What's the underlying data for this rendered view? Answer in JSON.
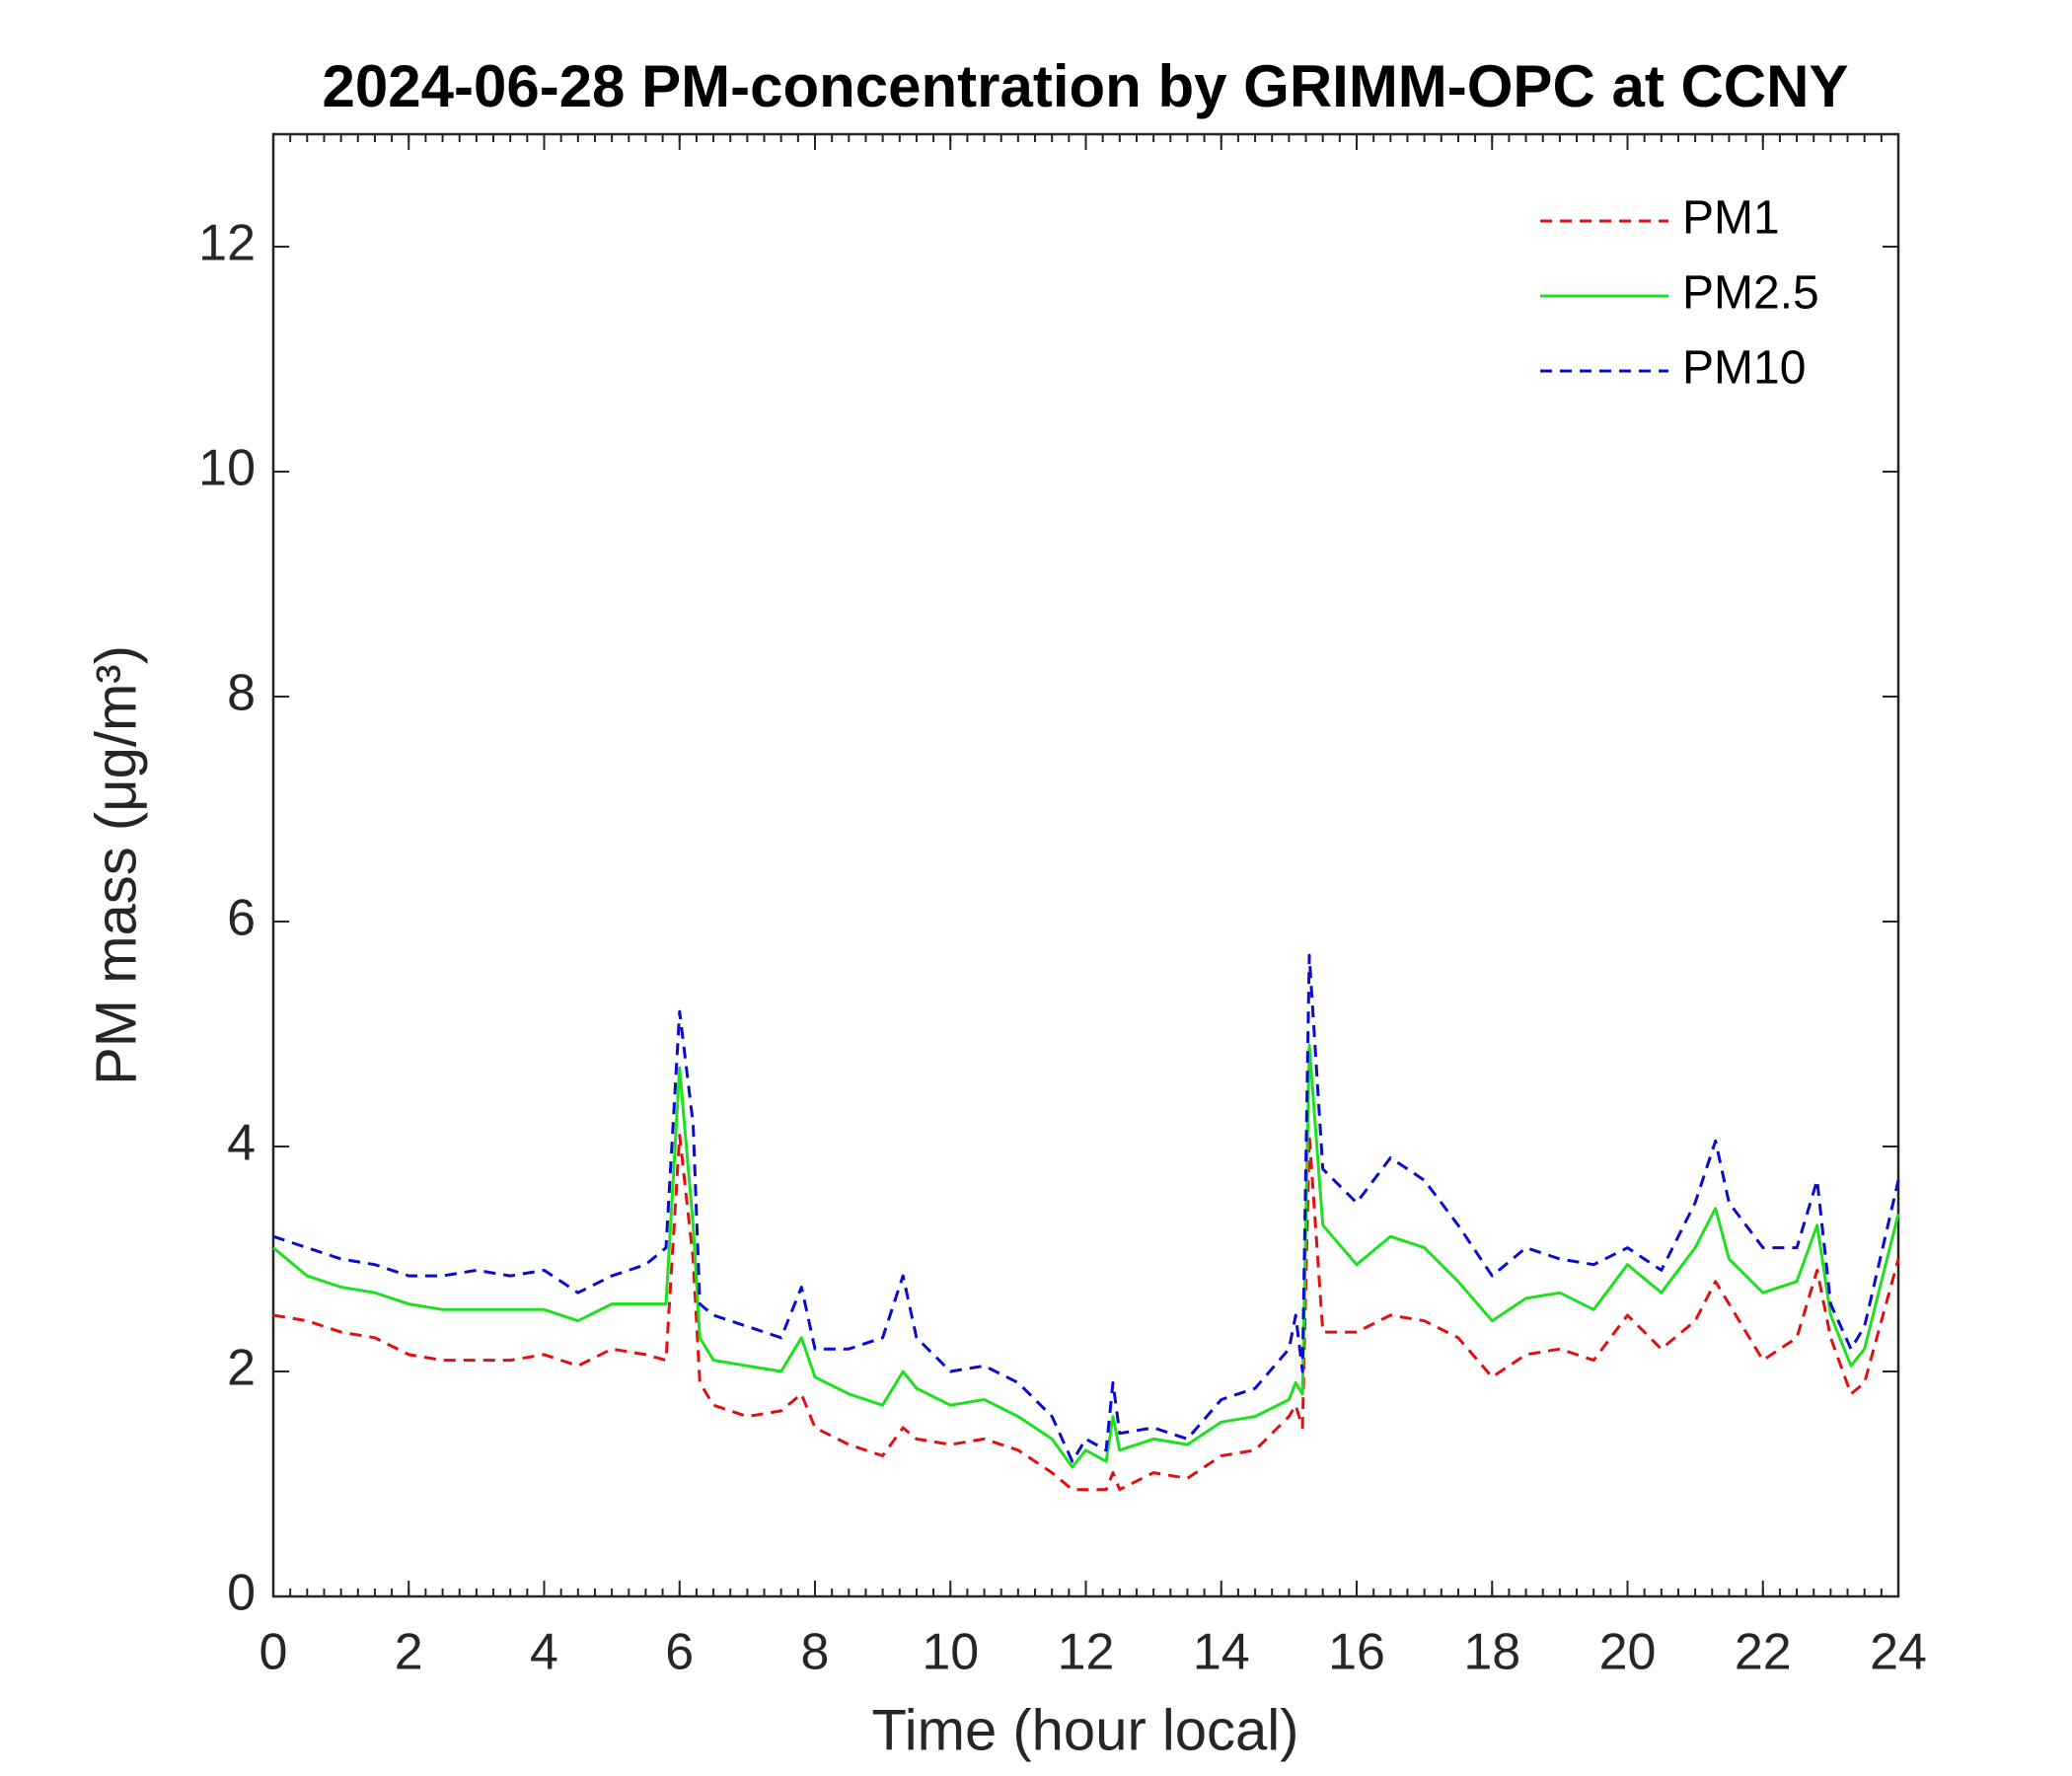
{
  "chart_data": {
    "type": "line",
    "title": "2024-06-28 PM-concentration by GRIMM-OPC at CCNY",
    "xlabel": "Time (hour local)",
    "ylabel": "PM mass (μg/m³)",
    "x": [
      0,
      0.5,
      1,
      1.5,
      2,
      2.5,
      3,
      3.5,
      4,
      4.5,
      5,
      5.5,
      5.8,
      6.0,
      6.2,
      6.3,
      6.5,
      7,
      7.5,
      7.8,
      8,
      8.5,
      9,
      9.3,
      9.5,
      10,
      10.5,
      11,
      11.5,
      11.8,
      12,
      12.3,
      12.4,
      12.5,
      13,
      13.5,
      14,
      14.5,
      15,
      15.1,
      15.2,
      15.3,
      15.5,
      16,
      16.5,
      17,
      17.5,
      18,
      18.5,
      19,
      19.5,
      20,
      20.5,
      21,
      21.3,
      21.5,
      22,
      22.5,
      22.8,
      23,
      23.3,
      23.5,
      24
    ],
    "series": [
      {
        "name": "PM1",
        "color": "#e01010",
        "line_style": "dashed",
        "values": [
          2.5,
          2.45,
          2.35,
          2.3,
          2.15,
          2.1,
          2.1,
          2.1,
          2.15,
          2.05,
          2.2,
          2.15,
          2.1,
          4.1,
          3.0,
          1.9,
          1.7,
          1.6,
          1.65,
          1.8,
          1.5,
          1.35,
          1.25,
          1.5,
          1.4,
          1.35,
          1.4,
          1.3,
          1.1,
          0.95,
          0.95,
          0.95,
          1.1,
          0.95,
          1.1,
          1.05,
          1.25,
          1.3,
          1.6,
          1.7,
          1.5,
          4.1,
          2.35,
          2.35,
          2.5,
          2.45,
          2.3,
          1.95,
          2.15,
          2.2,
          2.1,
          2.5,
          2.2,
          2.45,
          2.8,
          2.6,
          2.1,
          2.3,
          2.9,
          2.3,
          1.8,
          1.9,
          3.0
        ]
      },
      {
        "name": "PM2.5",
        "color": "#1ee01e",
        "line_style": "solid",
        "values": [
          3.1,
          2.85,
          2.75,
          2.7,
          2.6,
          2.55,
          2.55,
          2.55,
          2.55,
          2.45,
          2.6,
          2.6,
          2.6,
          4.7,
          3.3,
          2.3,
          2.1,
          2.05,
          2.0,
          2.3,
          1.95,
          1.8,
          1.7,
          2.0,
          1.85,
          1.7,
          1.75,
          1.6,
          1.4,
          1.15,
          1.3,
          1.2,
          1.6,
          1.3,
          1.4,
          1.35,
          1.55,
          1.6,
          1.75,
          1.9,
          1.8,
          4.9,
          3.3,
          2.95,
          3.2,
          3.1,
          2.8,
          2.45,
          2.65,
          2.7,
          2.55,
          2.95,
          2.7,
          3.1,
          3.45,
          3.0,
          2.7,
          2.8,
          3.3,
          2.5,
          2.05,
          2.2,
          3.4
        ]
      },
      {
        "name": "PM10",
        "color": "#0a0ad0",
        "line_style": "dashed",
        "values": [
          3.2,
          3.1,
          3.0,
          2.95,
          2.85,
          2.85,
          2.9,
          2.85,
          2.9,
          2.7,
          2.85,
          2.95,
          3.1,
          5.2,
          4.2,
          2.6,
          2.5,
          2.4,
          2.3,
          2.75,
          2.2,
          2.2,
          2.3,
          2.85,
          2.3,
          2.0,
          2.05,
          1.9,
          1.6,
          1.2,
          1.4,
          1.3,
          1.9,
          1.45,
          1.5,
          1.4,
          1.75,
          1.85,
          2.2,
          2.5,
          2.0,
          5.7,
          3.8,
          3.5,
          3.9,
          3.7,
          3.3,
          2.85,
          3.1,
          3.0,
          2.95,
          3.1,
          2.9,
          3.5,
          4.05,
          3.5,
          3.1,
          3.1,
          3.7,
          2.6,
          2.2,
          2.4,
          3.7
        ]
      }
    ],
    "xlim": [
      0,
      24
    ],
    "xticks": [
      0,
      2,
      4,
      6,
      8,
      10,
      12,
      14,
      16,
      18,
      20,
      22,
      24
    ],
    "xminor_step": 0.25,
    "ylim": [
      0,
      13
    ],
    "yticks": [
      0,
      2,
      4,
      6,
      8,
      10,
      12
    ],
    "grid": false,
    "legend": "upper right"
  }
}
